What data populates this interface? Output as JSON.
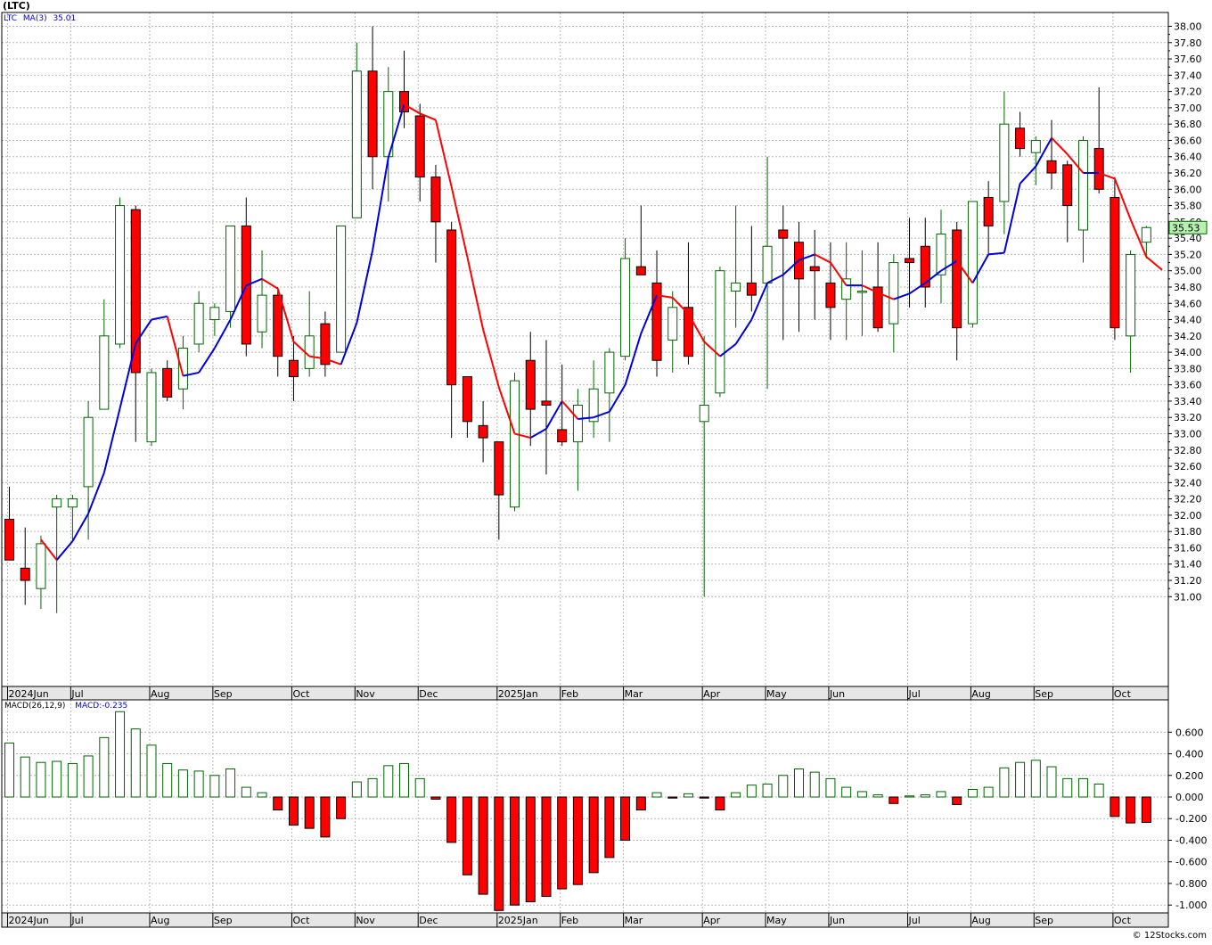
{
  "title": "(LTC)",
  "watermark": "© 12Stocks.com",
  "chart_data": [
    {
      "type": "candlestick",
      "ticker": "LTC",
      "legend": {
        "ticker": "LTC",
        "ma_label": "MA(3)",
        "ma_value": "35.01"
      },
      "last_price_label": "35.53",
      "ylim": [
        30.8,
        38.2
      ],
      "y_ticks": [
        "31.00",
        "31.20",
        "31.40",
        "31.60",
        "31.80",
        "32.00",
        "32.20",
        "32.40",
        "32.60",
        "32.80",
        "33.00",
        "33.20",
        "33.40",
        "33.60",
        "33.80",
        "34.00",
        "34.20",
        "34.40",
        "34.60",
        "34.80",
        "35.00",
        "35.20",
        "35.40",
        "35.60",
        "35.80",
        "36.00",
        "36.20",
        "36.40",
        "36.60",
        "36.80",
        "37.00",
        "37.20",
        "37.40",
        "37.60",
        "37.80",
        "38.00"
      ],
      "x_labels": [
        "2024Jun",
        "Jul",
        "Aug",
        "Sep",
        "Oct",
        "Nov",
        "Dec",
        "2025Jan",
        "Feb",
        "Mar",
        "Apr",
        "May",
        "Jun",
        "Jul",
        "Aug",
        "Sep",
        "Oct"
      ],
      "x_label_week_index": [
        0,
        4,
        9,
        13,
        18,
        22,
        26,
        31,
        35,
        39,
        44,
        48,
        52,
        57,
        61,
        65,
        70
      ],
      "ma_period": 3,
      "up_color": "#006400",
      "down_color": "#ff0000",
      "ma_up_color": "#0000dd",
      "ma_down_color": "#ff0000",
      "candles": [
        {
          "o": 31.95,
          "h": 32.35,
          "l": 31.45,
          "c": 31.45
        },
        {
          "o": 31.35,
          "h": 31.85,
          "l": 30.9,
          "c": 31.2
        },
        {
          "o": 31.1,
          "h": 31.75,
          "l": 30.85,
          "c": 31.65
        },
        {
          "o": 32.1,
          "h": 32.25,
          "l": 30.8,
          "c": 32.2
        },
        {
          "o": 32.1,
          "h": 32.25,
          "l": 31.7,
          "c": 32.2
        },
        {
          "o": 32.35,
          "h": 33.4,
          "l": 31.7,
          "c": 33.2
        },
        {
          "o": 33.3,
          "h": 34.65,
          "l": 33.3,
          "c": 34.2
        },
        {
          "o": 34.1,
          "h": 35.9,
          "l": 34.05,
          "c": 35.8
        },
        {
          "o": 35.75,
          "h": 35.8,
          "l": 32.9,
          "c": 33.75
        },
        {
          "o": 32.9,
          "h": 33.8,
          "l": 32.85,
          "c": 33.75
        },
        {
          "o": 33.8,
          "h": 33.9,
          "l": 33.4,
          "c": 33.45
        },
        {
          "o": 33.55,
          "h": 34.2,
          "l": 33.3,
          "c": 34.05
        },
        {
          "o": 34.1,
          "h": 34.75,
          "l": 34.0,
          "c": 34.6
        },
        {
          "o": 34.4,
          "h": 34.6,
          "l": 34.2,
          "c": 34.55
        },
        {
          "o": 34.5,
          "h": 35.55,
          "l": 34.3,
          "c": 35.55
        },
        {
          "o": 35.55,
          "h": 35.9,
          "l": 33.95,
          "c": 34.1
        },
        {
          "o": 34.25,
          "h": 35.25,
          "l": 34.05,
          "c": 34.7
        },
        {
          "o": 34.7,
          "h": 34.8,
          "l": 33.7,
          "c": 33.95
        },
        {
          "o": 33.9,
          "h": 34.2,
          "l": 33.4,
          "c": 33.7
        },
        {
          "o": 33.8,
          "h": 34.75,
          "l": 33.7,
          "c": 34.2
        },
        {
          "o": 34.35,
          "h": 34.5,
          "l": 33.7,
          "c": 33.85
        },
        {
          "o": 34.0,
          "h": 35.55,
          "l": 34.0,
          "c": 35.55
        },
        {
          "o": 35.65,
          "h": 37.8,
          "l": 35.65,
          "c": 37.45
        },
        {
          "o": 37.45,
          "h": 38.0,
          "l": 36.0,
          "c": 36.4
        },
        {
          "o": 36.4,
          "h": 37.5,
          "l": 35.85,
          "c": 37.2
        },
        {
          "o": 37.2,
          "h": 37.7,
          "l": 36.75,
          "c": 36.95
        },
        {
          "o": 36.9,
          "h": 37.05,
          "l": 35.85,
          "c": 36.15
        },
        {
          "o": 36.15,
          "h": 36.3,
          "l": 35.1,
          "c": 35.6
        },
        {
          "o": 35.5,
          "h": 35.6,
          "l": 32.95,
          "c": 33.6
        },
        {
          "o": 33.7,
          "h": 33.7,
          "l": 32.95,
          "c": 33.15
        },
        {
          "o": 33.1,
          "h": 33.4,
          "l": 32.65,
          "c": 32.95
        },
        {
          "o": 32.9,
          "h": 32.9,
          "l": 31.7,
          "c": 32.25
        },
        {
          "o": 32.1,
          "h": 33.75,
          "l": 32.05,
          "c": 33.65
        },
        {
          "o": 33.9,
          "h": 34.25,
          "l": 32.85,
          "c": 33.3
        },
        {
          "o": 33.4,
          "h": 34.15,
          "l": 32.5,
          "c": 33.35
        },
        {
          "o": 33.05,
          "h": 33.85,
          "l": 32.85,
          "c": 32.9
        },
        {
          "o": 32.9,
          "h": 33.55,
          "l": 32.3,
          "c": 33.35
        },
        {
          "o": 33.15,
          "h": 33.9,
          "l": 32.95,
          "c": 33.55
        },
        {
          "o": 33.5,
          "h": 34.05,
          "l": 32.9,
          "c": 34.0
        },
        {
          "o": 33.95,
          "h": 35.4,
          "l": 33.9,
          "c": 35.15
        },
        {
          "o": 35.05,
          "h": 35.8,
          "l": 34.95,
          "c": 34.95
        },
        {
          "o": 34.85,
          "h": 35.25,
          "l": 33.7,
          "c": 33.9
        },
        {
          "o": 34.15,
          "h": 34.75,
          "l": 33.75,
          "c": 34.55
        },
        {
          "o": 34.55,
          "h": 35.35,
          "l": 33.85,
          "c": 33.95
        },
        {
          "o": 33.15,
          "h": 34.2,
          "l": 31.0,
          "c": 33.35
        },
        {
          "o": 33.5,
          "h": 35.05,
          "l": 33.45,
          "c": 35.0
        },
        {
          "o": 34.75,
          "h": 35.8,
          "l": 34.3,
          "c": 34.85
        },
        {
          "o": 34.85,
          "h": 35.55,
          "l": 34.5,
          "c": 34.7
        },
        {
          "o": 34.85,
          "h": 36.4,
          "l": 33.55,
          "c": 35.3
        },
        {
          "o": 35.5,
          "h": 35.8,
          "l": 34.15,
          "c": 35.4
        },
        {
          "o": 35.35,
          "h": 35.6,
          "l": 34.25,
          "c": 34.9
        },
        {
          "o": 35.05,
          "h": 35.5,
          "l": 34.4,
          "c": 35.0
        },
        {
          "o": 34.85,
          "h": 35.35,
          "l": 34.15,
          "c": 34.55
        },
        {
          "o": 34.65,
          "h": 35.35,
          "l": 34.15,
          "c": 34.9
        },
        {
          "o": 34.75,
          "h": 35.25,
          "l": 34.2,
          "c": 34.75
        },
        {
          "o": 34.8,
          "h": 35.35,
          "l": 34.25,
          "c": 34.3
        },
        {
          "o": 34.35,
          "h": 35.2,
          "l": 34.0,
          "c": 35.1
        },
        {
          "o": 35.15,
          "h": 35.65,
          "l": 34.55,
          "c": 35.1
        },
        {
          "o": 35.3,
          "h": 35.65,
          "l": 34.55,
          "c": 34.8
        },
        {
          "o": 34.95,
          "h": 35.75,
          "l": 34.6,
          "c": 35.45
        },
        {
          "o": 35.5,
          "h": 35.6,
          "l": 33.9,
          "c": 34.3
        },
        {
          "o": 34.35,
          "h": 35.85,
          "l": 34.3,
          "c": 35.85
        },
        {
          "o": 35.9,
          "h": 36.1,
          "l": 35.2,
          "c": 35.55
        },
        {
          "o": 35.85,
          "h": 37.2,
          "l": 35.45,
          "c": 36.8
        },
        {
          "o": 36.75,
          "h": 36.95,
          "l": 36.4,
          "c": 36.5
        },
        {
          "o": 36.45,
          "h": 36.65,
          "l": 36.05,
          "c": 36.6
        },
        {
          "o": 36.35,
          "h": 36.85,
          "l": 36.0,
          "c": 36.2
        },
        {
          "o": 36.3,
          "h": 36.35,
          "l": 35.35,
          "c": 35.8
        },
        {
          "o": 35.5,
          "h": 36.65,
          "l": 35.1,
          "c": 36.6
        },
        {
          "o": 36.5,
          "h": 37.25,
          "l": 35.95,
          "c": 36.0
        },
        {
          "o": 35.9,
          "h": 36.15,
          "l": 34.15,
          "c": 34.3
        },
        {
          "o": 34.2,
          "h": 35.25,
          "l": 33.75,
          "c": 35.2
        },
        {
          "o": 35.35,
          "h": 35.55,
          "l": 35.15,
          "c": 35.53
        }
      ],
      "ma": [
        null,
        null,
        31.7,
        31.45,
        31.68,
        32.02,
        32.52,
        33.31,
        34.11,
        34.4,
        34.44,
        33.71,
        33.75,
        34.05,
        34.4,
        34.82,
        34.9,
        34.78,
        34.13,
        33.95,
        33.92,
        33.85,
        34.36,
        35.25,
        36.39,
        37.04,
        36.93,
        36.85,
        36.03,
        35.17,
        34.28,
        33.57,
        33.0,
        32.95,
        33.06,
        33.4,
        33.18,
        33.2,
        33.27,
        33.6,
        34.23,
        34.7,
        34.67,
        34.47,
        34.13,
        33.95,
        34.1,
        34.4,
        34.85,
        34.95,
        35.13,
        35.2,
        35.1,
        34.82,
        34.82,
        34.73,
        34.65,
        34.72,
        34.85,
        35.0,
        35.12,
        34.85,
        35.2,
        35.22,
        36.07,
        36.28,
        36.63,
        36.43,
        36.2,
        36.2,
        36.13,
        35.63,
        35.17,
        35.01
      ],
      "vgrid_weeks": [
        0,
        4,
        9,
        13,
        18,
        22,
        26,
        31,
        35,
        39,
        44,
        48,
        52,
        57,
        61,
        65,
        70
      ]
    },
    {
      "type": "bar",
      "indicator": "MACD(26,12,9)",
      "legend": {
        "label": "MACD(26,12,9)",
        "value_label": "MACD:-0.235"
      },
      "ylim": [
        -1.1,
        0.8
      ],
      "y_ticks": [
        "0.600",
        "0.400",
        "0.200",
        "0.000",
        "-0.200",
        "-0.400",
        "-0.600",
        "-0.800",
        "-1.000"
      ],
      "x_labels": [
        "2024Jun",
        "Jul",
        "Aug",
        "Sep",
        "Oct",
        "Nov",
        "Dec",
        "2025Jan",
        "Feb",
        "Mar",
        "Apr",
        "May",
        "Jun",
        "Jul",
        "Aug",
        "Sep",
        "Oct"
      ],
      "values": [
        0.5,
        0.37,
        0.32,
        0.33,
        0.31,
        0.38,
        0.55,
        0.79,
        0.63,
        0.48,
        0.31,
        0.25,
        0.24,
        0.2,
        0.26,
        0.09,
        0.04,
        -0.12,
        -0.26,
        -0.29,
        -0.37,
        -0.2,
        0.14,
        0.17,
        0.29,
        0.31,
        0.17,
        -0.02,
        -0.42,
        -0.72,
        -0.9,
        -1.05,
        -1.0,
        -0.97,
        -0.92,
        -0.85,
        -0.81,
        -0.7,
        -0.56,
        -0.4,
        -0.12,
        0.04,
        -0.01,
        0.03,
        -0.01,
        -0.12,
        0.04,
        0.11,
        0.12,
        0.2,
        0.26,
        0.23,
        0.17,
        0.09,
        0.05,
        0.02,
        -0.06,
        0.01,
        0.02,
        0.05,
        -0.07,
        0.07,
        0.09,
        0.27,
        0.32,
        0.34,
        0.28,
        0.17,
        0.17,
        0.12,
        -0.18,
        -0.24,
        -0.235
      ]
    }
  ]
}
